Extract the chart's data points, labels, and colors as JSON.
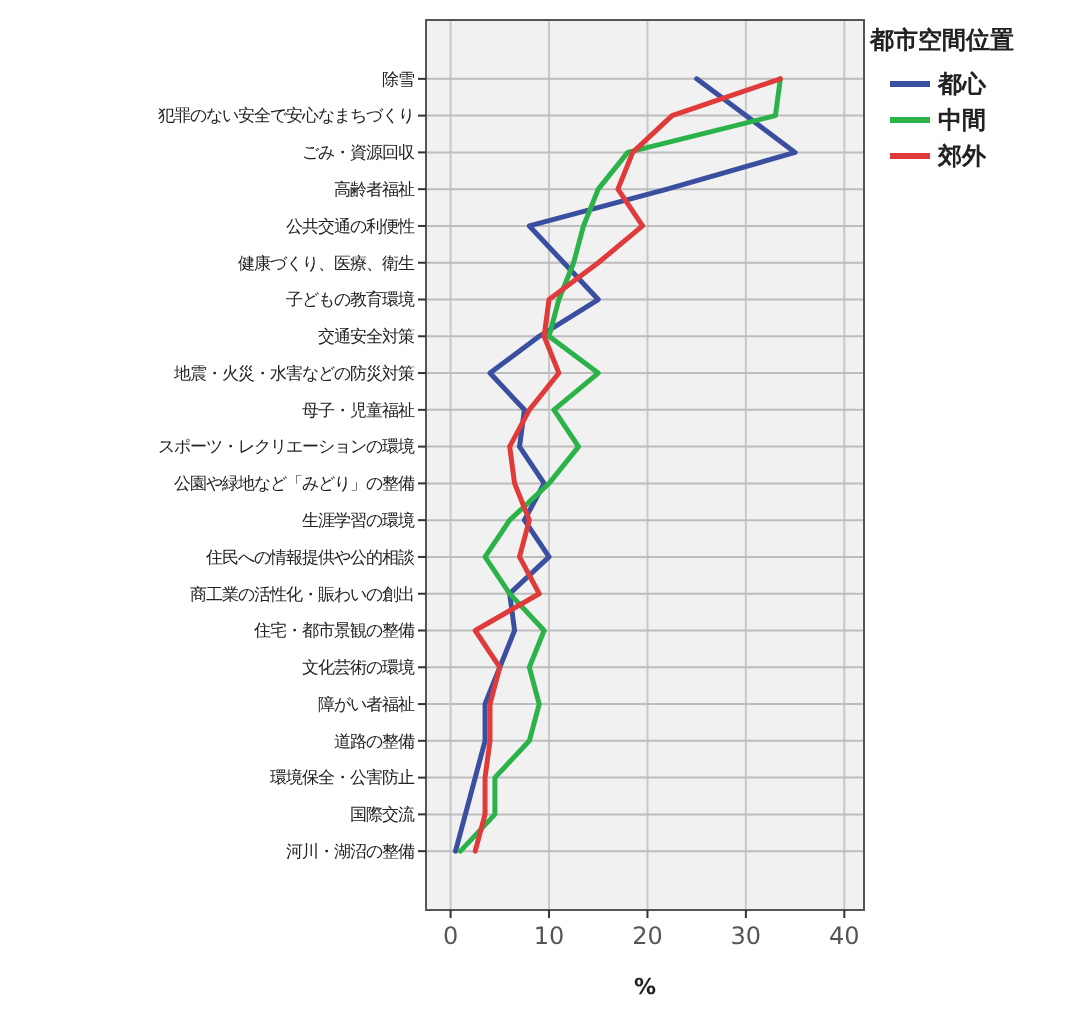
{
  "chart_data": {
    "type": "line",
    "xlabel": "%",
    "legend_title": "都市空間位置",
    "orientation": "horizontal",
    "categories": [
      "除雪",
      "犯罪のない安全で安心なまちづくり",
      "ごみ・資源回収",
      "高齢者福祉",
      "公共交通の利便性",
      "健康づくり、医療、衛生",
      "子どもの教育環境",
      "交通安全対策",
      "地震・火災・水害などの防災対策",
      "母子・児童福祉",
      "スポーツ・レクリエーションの環境",
      "公園や緑地など「みどり」の整備",
      "生涯学習の環境",
      "住民への情報提供や公的相談",
      "商工業の活性化・賑わいの創出",
      "住宅・都市景観の整備",
      "文化芸術の環境",
      "障がい者福祉",
      "道路の整備",
      "環境保全・公害防止",
      "国際交流",
      "河川・湖沼の整備"
    ],
    "series": [
      {
        "name": "都心",
        "color": "#3a4fa0",
        "values": [
          25,
          30,
          35,
          22,
          8,
          11.5,
          15,
          9,
          4,
          7.5,
          7,
          9.5,
          7.5,
          10,
          6,
          6.5,
          5,
          3.5,
          3.5,
          2.5,
          1.5,
          0.5
        ]
      },
      {
        "name": "中間",
        "color": "#2bb34a",
        "values": [
          33.5,
          33,
          18,
          15,
          13.5,
          12.5,
          11,
          10,
          15,
          10.5,
          13,
          10,
          6,
          3.5,
          6,
          9.5,
          8,
          9,
          8,
          4.5,
          4.5,
          1
        ]
      },
      {
        "name": "郊外",
        "color": "#e03a3a",
        "values": [
          33.5,
          22.5,
          18.5,
          17,
          19.5,
          15,
          10,
          9.5,
          11,
          8,
          6,
          6.5,
          8,
          7,
          9,
          2.5,
          5,
          4,
          4,
          3.5,
          3.5,
          2.5
        ]
      }
    ],
    "xlim": [
      -2.5,
      42
    ],
    "xticks": [
      0,
      10,
      20,
      30,
      40
    ],
    "grid": true,
    "legend": "top right"
  }
}
